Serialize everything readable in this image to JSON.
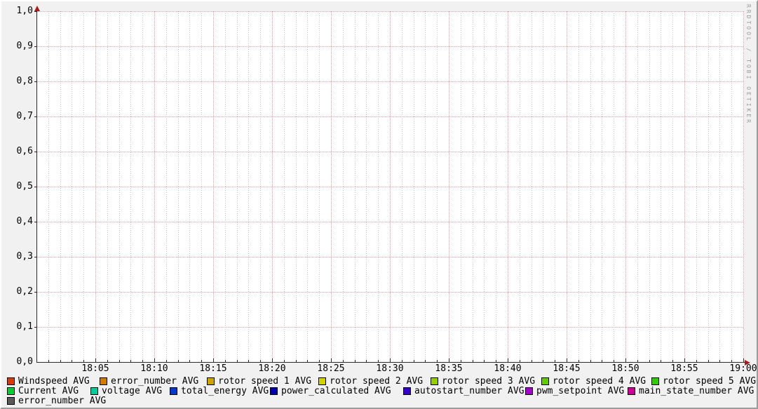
{
  "watermark": "RRDTOOL / TOBI OETIKER",
  "chart_data": {
    "type": "line",
    "title": "",
    "xlabel": "",
    "ylabel": "",
    "x_axis": {
      "start": "18:00",
      "end": "19:00",
      "major_tick_interval_minutes": 5,
      "minor_tick_interval_minutes": 1,
      "tick_labels": [
        "18:05",
        "18:10",
        "18:15",
        "18:20",
        "18:25",
        "18:30",
        "18:35",
        "18:40",
        "18:45",
        "18:50",
        "18:55",
        "19:00"
      ]
    },
    "y_axis": {
      "min": 0.0,
      "max": 1.0,
      "tick_step": 0.1,
      "tick_labels": [
        "0,0",
        "0,1",
        "0,2",
        "0,3",
        "0,4",
        "0,5",
        "0,6",
        "0,7",
        "0,8",
        "0,9",
        "1,0"
      ]
    },
    "grid": {
      "vertical_minor": true,
      "vertical_major_color": "#e89a9a",
      "vertical_minor_color": "#c3c3c3",
      "horizontal_major_color": "#e89a9a",
      "horizontal_minor": false
    },
    "legend_position": "bottom",
    "series": [
      {
        "name": "Windspeed AVG",
        "color": "#d83a00",
        "values": []
      },
      {
        "name": "error_number AVG",
        "color": "#d07c00",
        "values": []
      },
      {
        "name": "rotor speed 1 AVG",
        "color": "#cca300",
        "values": []
      },
      {
        "name": "rotor speed 2 AVG",
        "color": "#d2d200",
        "values": []
      },
      {
        "name": "rotor speed 3 AVG",
        "color": "#95cc00",
        "values": []
      },
      {
        "name": "rotor speed 4 AVG",
        "color": "#62cc00",
        "values": []
      },
      {
        "name": "rotor speed 5 AVG",
        "color": "#2ecc00",
        "values": []
      },
      {
        "name": "Current AVG",
        "color": "#00cc33",
        "values": []
      },
      {
        "name": "voltage AVG",
        "color": "#00cc9a",
        "values": []
      },
      {
        "name": "total_energy AVG",
        "color": "#0038cc",
        "values": []
      },
      {
        "name": "power_calculated AVG",
        "color": "#0000a8",
        "values": []
      },
      {
        "name": "autostart_number AVG",
        "color": "#3700c8",
        "values": []
      },
      {
        "name": "pwm_setpoint AVG",
        "color": "#a300cc",
        "values": []
      },
      {
        "name": "main_state_number AVG",
        "color": "#cc0095",
        "values": []
      },
      {
        "name": "error_number AVG",
        "color": "#5a5a5a",
        "values": []
      }
    ],
    "note": "empty graph - no data points plotted"
  },
  "colors": {
    "background": "#f1f1f1",
    "canvas": "#ffffff",
    "axis": "#2a2a2a",
    "arrow": "#a02020",
    "major_grid": "#e89a9a",
    "minor_grid": "#c3c3c3",
    "watermark": "#9c9c9c"
  }
}
